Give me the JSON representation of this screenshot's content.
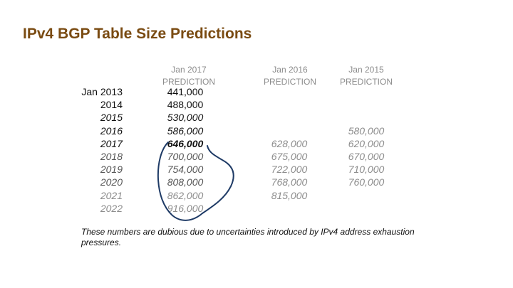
{
  "title": "IPv4 BGP Table Size Predictions",
  "headers": [
    {
      "line1": "Jan 2017",
      "line2": "PREDICTION"
    },
    {
      "line1": "Jan 2016",
      "line2": "PREDICTION"
    },
    {
      "line1": "Jan 2015",
      "line2": "PREDICTION"
    }
  ],
  "years": [
    "Jan 2013",
    "2014",
    "2015",
    "2016",
    "2017",
    "2018",
    "2019",
    "2020",
    "2021",
    "2022"
  ],
  "pred_2017": [
    "441,000",
    "488,000",
    "530,000",
    "586,000",
    "646,000",
    "700,000",
    "754,000",
    "808,000",
    "862,000",
    "916,000"
  ],
  "pred_2016": [
    "",
    "",
    "",
    "",
    "628,000",
    "675,000",
    "722,000",
    "768,000",
    "815,000",
    ""
  ],
  "pred_2015": [
    "",
    "",
    "",
    "580,000",
    "620,000",
    "670,000",
    "710,000",
    "760,000",
    "",
    ""
  ],
  "note": "These numbers are dubious due to uncertainties introduced by IPv4 address exhaustion pressures.",
  "colors": {
    "title": "#7a4b12",
    "muted": "#8c8c8c",
    "ink": "#1f3b66",
    "text": "#111111"
  }
}
